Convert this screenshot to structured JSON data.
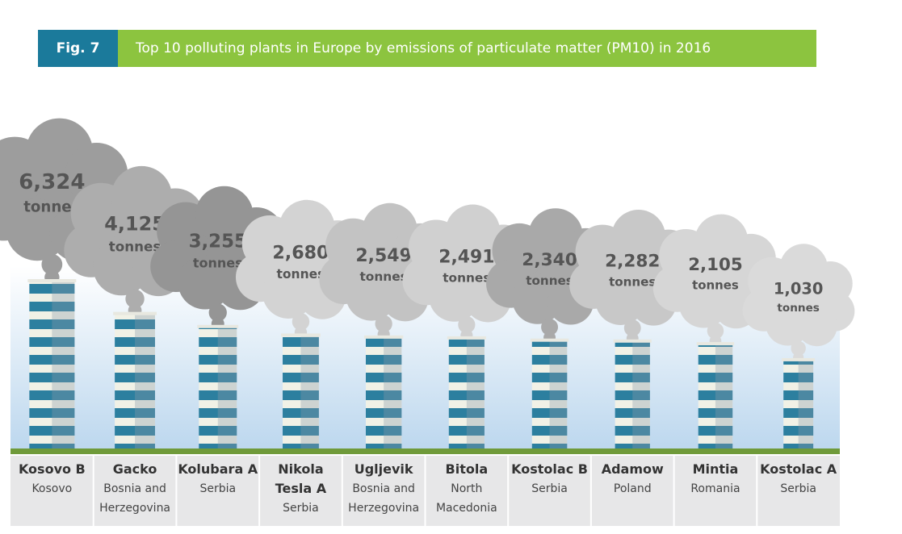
{
  "fig_label": "Fig. 7",
  "chart_data": {
    "type": "bar",
    "title": "Top 10 polluting plants in Europe by emissions of particulate matter (PM10) in 2016",
    "categories": [
      "Kosovo B",
      "Gacko",
      "Kolubara A",
      "Nikola Tesla A",
      "Ugljevik",
      "Bitola",
      "Kostolac B",
      "Adamow",
      "Mintia",
      "Kostolac A"
    ],
    "countries": [
      "Kosovo",
      "Bosnia and Herzegovina",
      "Serbia",
      "Serbia",
      "Bosnia and Herzegovina",
      "North Macedonia",
      "Serbia",
      "Poland",
      "Romania",
      "Serbia"
    ],
    "values": [
      6324,
      4125,
      3255,
      2680,
      2549,
      2491,
      2340,
      2282,
      2105,
      1030
    ],
    "value_labels": [
      "6,324",
      "4,125",
      "3,255",
      "2,680",
      "2,549",
      "2,491",
      "2,340",
      "2,282",
      "2,105",
      "1,030"
    ],
    "unit": "tonnes",
    "colors": [
      "#9d9d9d",
      "#adadad",
      "#959595",
      "#d3d3d3",
      "#c3c3c3",
      "#d0d0d0",
      "#a9a9a9",
      "#c8c8c8",
      "#d6d6d6",
      "#dadada"
    ]
  }
}
